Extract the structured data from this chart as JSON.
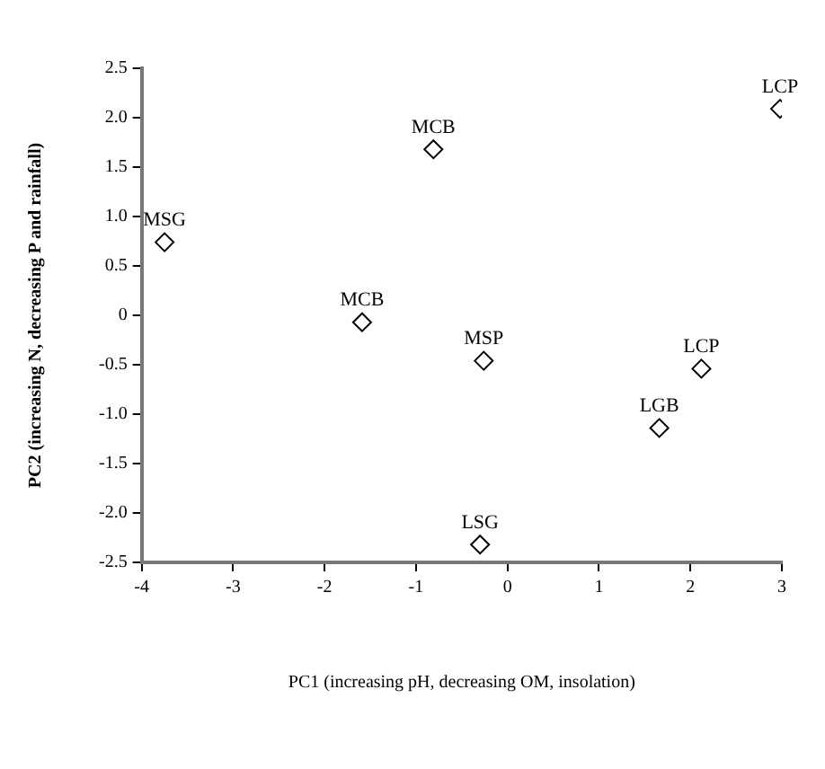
{
  "chart_data": {
    "type": "scatter",
    "xlabel": "PC1 (increasing pH, decreasing OM, insolation)",
    "ylabel": "PC2 (increasing N, decreasing P and rainfall)",
    "x": [
      -0.81,
      -3.75,
      -1.59,
      -0.26,
      2.12,
      1.66,
      -0.3,
      2.98
    ],
    "series": [
      {
        "color": "#000000",
        "values": [
          1.68,
          0.74,
          -0.07,
          -0.46,
          -0.54,
          -1.14,
          -2.32,
          2.09
        ]
      }
    ],
    "annotations": [
      {
        "text": "MCB",
        "x": -0.81,
        "y": 1.68
      },
      {
        "text": "MSG",
        "x": -3.75,
        "y": 0.74
      },
      {
        "text": "MCB",
        "x": -1.59,
        "y": -0.07
      },
      {
        "text": "MSP",
        "x": -0.26,
        "y": -0.46
      },
      {
        "text": "LCP",
        "x": 2.12,
        "y": -0.54
      },
      {
        "text": "LGB",
        "x": 1.66,
        "y": -1.14
      },
      {
        "text": "LSG",
        "x": -0.3,
        "y": -2.32
      },
      {
        "text": "LCP",
        "x": 2.98,
        "y": 2.09
      }
    ],
    "xlim": [
      -4,
      3
    ],
    "xticks": [
      -4,
      -3,
      -2,
      -1,
      0,
      1,
      2,
      3
    ],
    "ylim": [
      -2.5,
      2.5
    ],
    "yticks": [
      {
        "value": -2.5,
        "label": "-2.5"
      },
      {
        "value": -2,
        "label": "-2.0"
      },
      {
        "value": -1.5,
        "label": "-1.5"
      },
      {
        "value": -1,
        "label": "-1.0"
      },
      {
        "value": -0.5,
        "label": "-0.5"
      },
      0,
      {
        "value": 0.5,
        "label": "0.5"
      },
      {
        "value": 1,
        "label": "1.0"
      },
      {
        "value": 1.5,
        "label": "1.5"
      },
      {
        "value": 2,
        "label": "2.0"
      },
      {
        "value": 2.5,
        "label": "2.5"
      }
    ],
    "grid": false,
    "legend": false,
    "marker": "diamond"
  }
}
